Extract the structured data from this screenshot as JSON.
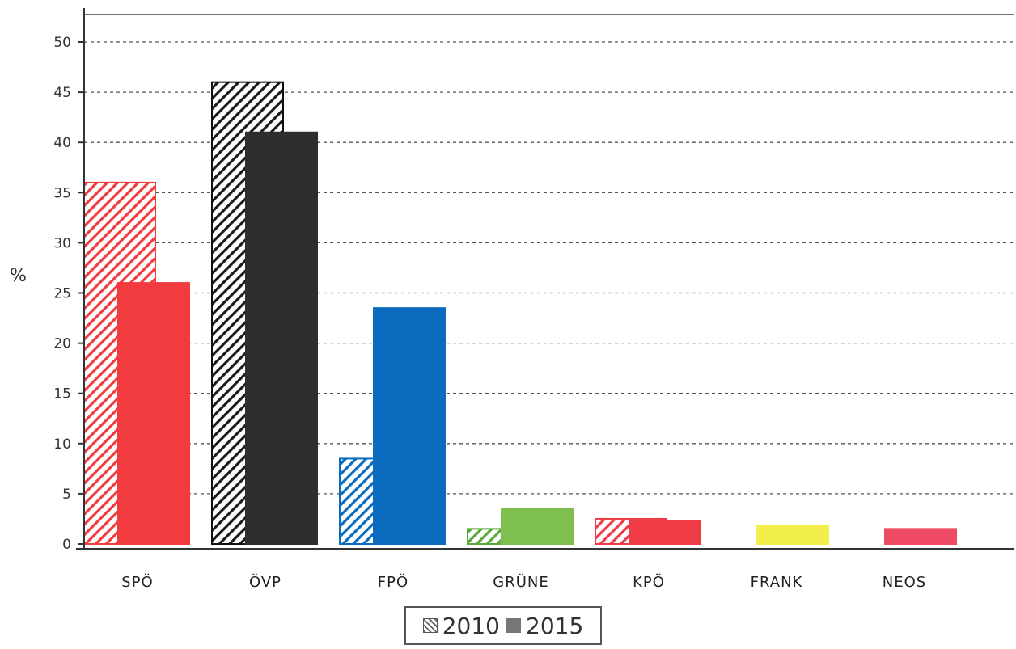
{
  "chart_data": {
    "type": "bar",
    "categories": [
      "SPÖ",
      "ÖVP",
      "FPÖ",
      "GRÜNE",
      "KPÖ",
      "FRANK",
      "NEOS"
    ],
    "series": [
      {
        "name": "2010",
        "values": [
          36,
          46,
          8.5,
          1.5,
          2.5,
          null,
          null
        ],
        "style": "hatched"
      },
      {
        "name": "2015",
        "values": [
          26,
          41,
          23.5,
          3.5,
          2.3,
          1.8,
          1.5
        ],
        "style": "solid"
      }
    ],
    "category_colors": [
      "#f23b3f",
      "#2e2e2e",
      "#0a6bbf",
      "#7fbf4d",
      "#ef3b45",
      "#f3ef4a",
      "#ef4a63"
    ],
    "hatch_line_colors": [
      "#f23b3f",
      "#1a1a1a",
      "#0a6bbf",
      "#5aa83a",
      "#ef3b45",
      "#f3ef4a",
      "#ef4a63"
    ],
    "ylabel": "%",
    "xlabel": "",
    "ylim": [
      0,
      50
    ],
    "yticks": [
      0,
      5,
      10,
      15,
      20,
      25,
      30,
      35,
      40,
      45,
      50
    ],
    "grid": true,
    "legend": {
      "placement": "bottom-center",
      "entries": [
        "2010",
        "2015"
      ]
    }
  }
}
